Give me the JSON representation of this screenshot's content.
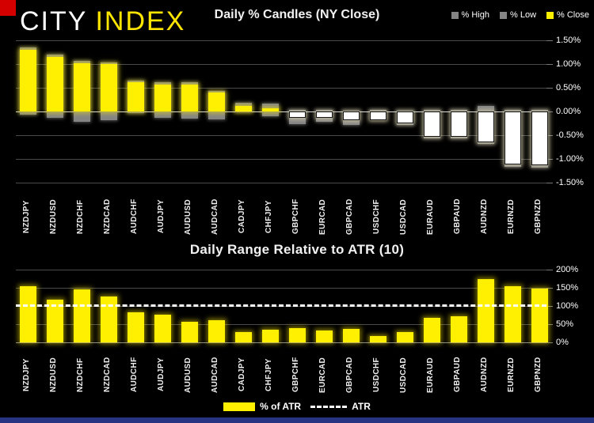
{
  "brand": {
    "city": "CITY",
    "index": "INDEX"
  },
  "colors": {
    "background": "#000000",
    "bar_yellow": "#ffef00",
    "bar_gray": "#848484",
    "bar_white": "#ffffff",
    "red_marker": "#d40000",
    "footer_blue": "#263481",
    "grid": "#4a4a4a",
    "zero_line": "#d9d9d9",
    "text": "#ffffff"
  },
  "top_chart": {
    "title": "Daily % Candles (NY Close)",
    "legend": [
      {
        "label": "% High",
        "color": "#848484"
      },
      {
        "label": "% Low",
        "color": "#848484"
      },
      {
        "label": "% Close",
        "color": "#ffef00"
      }
    ]
  },
  "bottom_chart": {
    "title": "Daily Range Relative to ATR (10)",
    "legend": [
      {
        "label": "% of ATR",
        "swatch": "bar",
        "color": "#ffef00"
      },
      {
        "label": "ATR",
        "swatch": "dashed-line",
        "color": "#ffffff"
      }
    ]
  },
  "chart_data": [
    {
      "type": "bar",
      "subtype": "high-low-close-candles",
      "title": "Daily % Candles (NY Close)",
      "categories": [
        "NZDJPY",
        "NZDUSD",
        "NZDCHF",
        "NZDCAD",
        "AUDCHF",
        "AUDJPY",
        "AUDUSD",
        "AUDCAD",
        "CADJPY",
        "CHFJPY",
        "GBPCHF",
        "EURCAD",
        "GBPCAD",
        "USDCHF",
        "USDCAD",
        "EURAUD",
        "GBPAUD",
        "AUDNZD",
        "EURNZD",
        "GBPNZD"
      ],
      "series": [
        {
          "name": "% High",
          "values": [
            1.35,
            1.2,
            1.07,
            1.04,
            0.65,
            0.62,
            0.62,
            0.43,
            0.18,
            0.17,
            0.04,
            0.04,
            0.02,
            0.03,
            0.02,
            0.04,
            0.03,
            0.12,
            0.03,
            0.03
          ]
        },
        {
          "name": "% Low",
          "values": [
            -0.06,
            -0.14,
            -0.21,
            -0.18,
            -0.03,
            -0.14,
            -0.15,
            -0.16,
            -0.01,
            -0.1,
            -0.26,
            -0.22,
            -0.28,
            -0.19,
            -0.29,
            -0.57,
            -0.57,
            -0.69,
            -1.17,
            -1.18
          ]
        },
        {
          "name": "% Close",
          "values": [
            1.3,
            1.15,
            1.02,
            1.0,
            0.62,
            0.56,
            0.57,
            0.4,
            0.11,
            0.06,
            -0.13,
            -0.14,
            -0.18,
            -0.18,
            -0.25,
            -0.54,
            -0.54,
            -0.65,
            -1.12,
            -1.14
          ]
        }
      ],
      "ylim": [
        -1.5,
        1.5
      ],
      "yticks": [
        {
          "value": 1.5,
          "label": "1.50%"
        },
        {
          "value": 1.0,
          "label": "1.00%"
        },
        {
          "value": 0.5,
          "label": "0.50%"
        },
        {
          "value": 0.0,
          "label": "0.00%"
        },
        {
          "value": -0.5,
          "label": "-0.50%"
        },
        {
          "value": -1.0,
          "label": "-1.00%"
        },
        {
          "value": -1.5,
          "label": "-1.50%"
        }
      ],
      "grid": true,
      "legend_position": "top-right"
    },
    {
      "type": "bar",
      "title": "Daily Range Relative to ATR (10)",
      "categories": [
        "NZDJPY",
        "NZDUSD",
        "NZDCHF",
        "NZDCAD",
        "AUDCHF",
        "AUDJPY",
        "AUDUSD",
        "AUDCAD",
        "CADJPY",
        "CHFJPY",
        "GBPCHF",
        "EURCAD",
        "GBPCAD",
        "USDCHF",
        "USDCAD",
        "EURAUD",
        "GBPAUD",
        "AUDNZD",
        "EURNZD",
        "GBPNZD"
      ],
      "series": [
        {
          "name": "% of ATR",
          "values": [
            153,
            117,
            145,
            126,
            83,
            76,
            56,
            60,
            29,
            35,
            40,
            32,
            37,
            18,
            29,
            68,
            72,
            172,
            153,
            148
          ]
        }
      ],
      "reference_line": {
        "name": "ATR",
        "value": 100,
        "style": "dashed",
        "color": "#ffffff"
      },
      "ylim": [
        0,
        200
      ],
      "yticks": [
        {
          "value": 200,
          "label": "200%"
        },
        {
          "value": 150,
          "label": "150%"
        },
        {
          "value": 100,
          "label": "100%"
        },
        {
          "value": 50,
          "label": "50%"
        },
        {
          "value": 0,
          "label": "0%"
        }
      ],
      "grid": true,
      "legend_position": "bottom"
    }
  ]
}
